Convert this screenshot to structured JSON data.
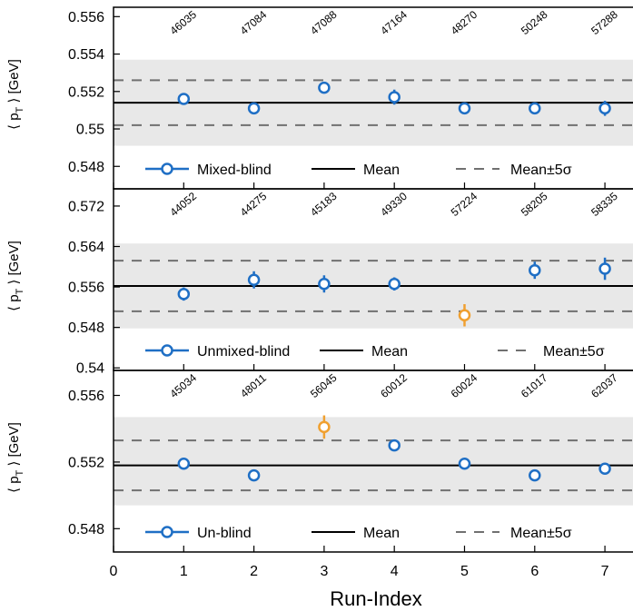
{
  "chart_data": {
    "type": "scatter",
    "xlabel": "Run-Index",
    "xlim": [
      0,
      7.4
    ],
    "xticks": [
      "0",
      "1",
      "2",
      "3",
      "4",
      "5",
      "6",
      "7"
    ],
    "colors": {
      "normal": "#1f6fc5",
      "outlier": "#f0a030",
      "band": "#e8e8e8",
      "mean": "#000000",
      "sigma": "#707070"
    },
    "panels": [
      {
        "ylabel_main": "⟨ p",
        "ylabel_sub": "T",
        "ylabel_tail": " ⟩ [GeV]",
        "ylim": [
          0.5468,
          0.5565
        ],
        "yticks": [
          {
            "v": 0.548,
            "label": "0.548"
          },
          {
            "v": 0.55,
            "label": "0.55"
          },
          {
            "v": 0.552,
            "label": "0.552"
          },
          {
            "v": 0.554,
            "label": "0.554"
          },
          {
            "v": 0.556,
            "label": "0.556"
          }
        ],
        "mean": 0.5514,
        "sigma_band": [
          0.5502,
          0.5526
        ],
        "shade": [
          0.5491,
          0.5537
        ],
        "runs": [
          "46035",
          "47084",
          "47088",
          "47164",
          "48270",
          "50248",
          "57288"
        ],
        "points": [
          {
            "x": 1,
            "y": 0.5516,
            "err": 0.0002,
            "outlier": false
          },
          {
            "x": 2,
            "y": 0.5511,
            "err": 0.0002,
            "outlier": false
          },
          {
            "x": 3,
            "y": 0.5522,
            "err": 0.0003,
            "outlier": false
          },
          {
            "x": 4,
            "y": 0.5517,
            "err": 0.0004,
            "outlier": false
          },
          {
            "x": 5,
            "y": 0.5511,
            "err": 0.0002,
            "outlier": false
          },
          {
            "x": 6,
            "y": 0.5511,
            "err": 0.0003,
            "outlier": false
          },
          {
            "x": 7,
            "y": 0.5511,
            "err": 0.0004,
            "outlier": false
          }
        ],
        "legend": {
          "series": "Mixed-blind",
          "mean": "Mean",
          "sigma": "Mean±5σ"
        }
      },
      {
        "ylabel_main": "⟨ p",
        "ylabel_sub": "T",
        "ylabel_tail": " ⟩ [GeV]",
        "ylim": [
          0.5395,
          0.5754
        ],
        "yticks": [
          {
            "v": 0.54,
            "label": "0.54"
          },
          {
            "v": 0.548,
            "label": "0.548"
          },
          {
            "v": 0.556,
            "label": "0.556"
          },
          {
            "v": 0.564,
            "label": "0.564"
          },
          {
            "v": 0.572,
            "label": "0.572"
          }
        ],
        "mean": 0.5562,
        "sigma_band": [
          0.5512,
          0.5612
        ],
        "shade": [
          0.5478,
          0.5646
        ],
        "runs": [
          "44052",
          "44275",
          "45183",
          "49330",
          "57224",
          "58205",
          "58335"
        ],
        "points": [
          {
            "x": 1,
            "y": 0.5546,
            "err": 0.0013,
            "outlier": false
          },
          {
            "x": 2,
            "y": 0.5574,
            "err": 0.0017,
            "outlier": false
          },
          {
            "x": 3,
            "y": 0.5566,
            "err": 0.0017,
            "outlier": false
          },
          {
            "x": 4,
            "y": 0.5566,
            "err": 0.0013,
            "outlier": false
          },
          {
            "x": 5,
            "y": 0.5504,
            "err": 0.0022,
            "outlier": true
          },
          {
            "x": 6,
            "y": 0.5593,
            "err": 0.0017,
            "outlier": false
          },
          {
            "x": 7,
            "y": 0.5596,
            "err": 0.0022,
            "outlier": false
          }
        ],
        "legend": {
          "series": "Unmixed-blind",
          "mean": "Mean",
          "sigma": "Mean±5σ"
        }
      },
      {
        "ylabel_main": "⟨ p",
        "ylabel_sub": "T",
        "ylabel_tail": " ⟩ [GeV]",
        "ylim": [
          0.5466,
          0.5575
        ],
        "yticks": [
          {
            "v": 0.548,
            "label": "0.548"
          },
          {
            "v": 0.552,
            "label": "0.552"
          },
          {
            "v": 0.556,
            "label": "0.556"
          }
        ],
        "mean": 0.5518,
        "sigma_band": [
          0.5503,
          0.5533
        ],
        "shade": [
          0.5494,
          0.5547
        ],
        "runs": [
          "45034",
          "48011",
          "56045",
          "60012",
          "60024",
          "61017",
          "62037"
        ],
        "points": [
          {
            "x": 1,
            "y": 0.5519,
            "err": 0.0002,
            "outlier": false
          },
          {
            "x": 2,
            "y": 0.5512,
            "err": 0.0002,
            "outlier": false
          },
          {
            "x": 3,
            "y": 0.5541,
            "err": 0.0007,
            "outlier": true
          },
          {
            "x": 4,
            "y": 0.553,
            "err": 0.0002,
            "outlier": false
          },
          {
            "x": 5,
            "y": 0.5519,
            "err": 0.0002,
            "outlier": false
          },
          {
            "x": 6,
            "y": 0.5512,
            "err": 0.0003,
            "outlier": false
          },
          {
            "x": 7,
            "y": 0.5516,
            "err": 0.0003,
            "outlier": false
          }
        ],
        "legend": {
          "series": "Un-blind",
          "mean": "Mean",
          "sigma": "Mean±5σ"
        }
      }
    ]
  }
}
